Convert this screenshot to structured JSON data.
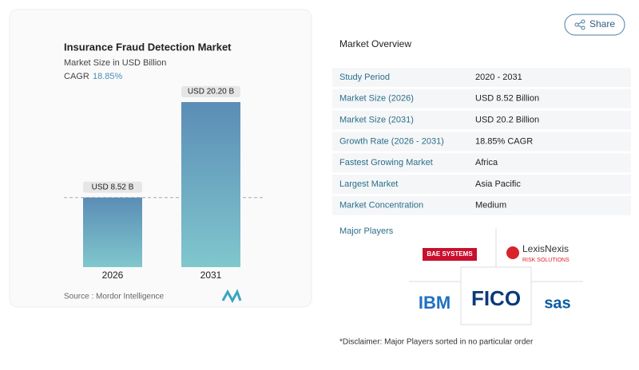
{
  "chart_data": {
    "type": "bar",
    "title": "Insurance Fraud Detection Market",
    "subtitle": "Market Size in USD Billion",
    "cagr_label": "CAGR",
    "cagr_value": "18.85%",
    "categories": [
      "2026",
      "2031"
    ],
    "values": [
      8.52,
      20.2
    ],
    "value_labels": [
      "USD 8.52 B",
      "USD 20.20 B"
    ],
    "source": "Source :  Mordor Intelligence"
  },
  "share": "Share",
  "overview": {
    "title": "Market Overview",
    "rows": [
      [
        "Study Period",
        "2020 - 2031"
      ],
      [
        "Market Size (2026)",
        "USD 8.52 Billion"
      ],
      [
        "Market Size (2031)",
        "USD 20.2 Billion"
      ],
      [
        "Growth Rate (2026 - 2031)",
        "18.85% CAGR"
      ],
      [
        "Fastest Growing Market",
        "Africa"
      ],
      [
        "Largest Market",
        "Asia Pacific"
      ],
      [
        "Market Concentration",
        "Medium"
      ]
    ]
  },
  "major_players": {
    "title": "Major Players",
    "logos": [
      "BAE SYSTEMS",
      "LexisNexis",
      "RISK SOLUTIONS",
      "IBM",
      "FICO",
      "sas"
    ]
  },
  "disclaimer": "*Disclaimer: Major Players sorted in no particular order"
}
